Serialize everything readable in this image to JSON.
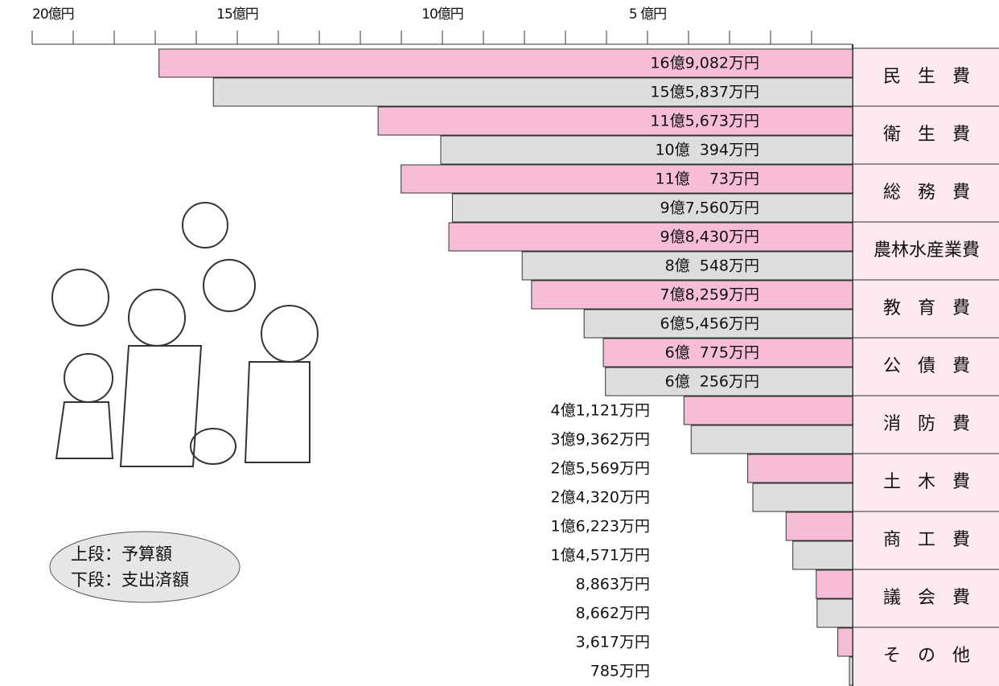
{
  "chart_data": {
    "type": "barh-left",
    "categories": [
      "民 生 費",
      "衛 生 費",
      "総 務 費",
      "農林水産業費",
      "教 育 費",
      "公 債 費",
      "消 防 費",
      "土 木 費",
      "商 工 費",
      "議 会 費",
      "そ の 他"
    ],
    "series": [
      {
        "name": "上段：予算額",
        "color": "#f7bdd7",
        "values": [
          16.9082,
          11.5673,
          11.0073,
          9.843,
          7.8259,
          6.0775,
          4.1121,
          2.5569,
          1.6223,
          0.8863,
          0.3617
        ],
        "value_labels": [
          "16億9,082万円",
          "11億5,673万円",
          "11億    73万円",
          "9億8,430万円",
          "7億8,259万円",
          "6億  775万円",
          "4億1,121万円",
          "2億5,569万円",
          "1億6,223万円",
          "8,863万円",
          "3,617万円"
        ]
      },
      {
        "name": "下段：支出済額",
        "color": "#dddddd",
        "values": [
          15.5837,
          10.0394,
          9.756,
          8.0548,
          6.5456,
          6.0256,
          3.9362,
          2.432,
          1.4571,
          0.8662,
          0.0785
        ],
        "value_labels": [
          "15億5,837万円",
          "10億  394万円",
          "9億7,560万円",
          "8億  548万円",
          "6億5,456万円",
          "6億  256万円",
          "3億9,362万円",
          "2億4,320万円",
          "1億4,571万円",
          "8,662万円",
          "785万円"
        ]
      }
    ],
    "xlim": [
      20,
      0
    ],
    "xticks": [
      {
        "value": 20,
        "label": "20億円"
      },
      {
        "value": 15,
        "label": "15億円"
      },
      {
        "value": 10,
        "label": "10億円"
      },
      {
        "value": 5,
        "label": "5 億円"
      }
    ],
    "xminor": [
      1,
      2,
      3,
      4,
      6,
      7,
      8,
      9,
      11,
      12,
      13,
      14,
      16,
      17,
      18,
      19
    ]
  }
}
